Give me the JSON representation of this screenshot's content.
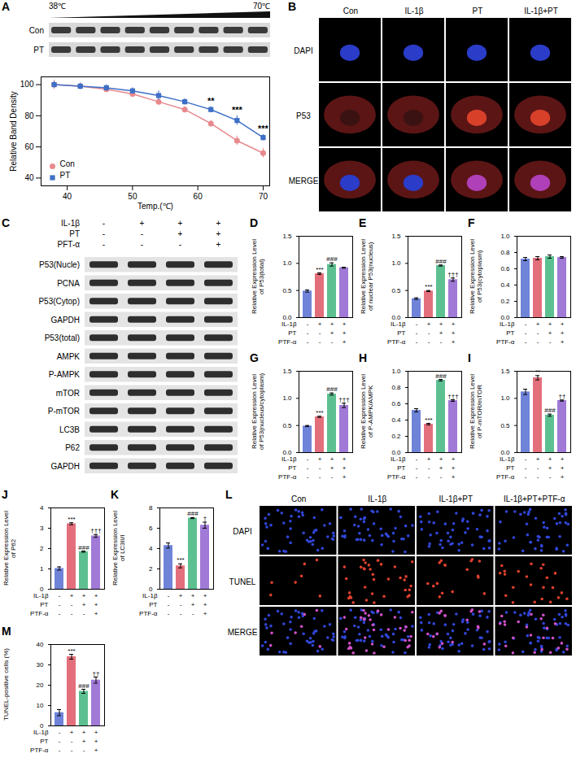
{
  "chart_data": [
    {
      "panel": "A",
      "type": "line",
      "blot": {
        "left_label": "38℃",
        "right_label": "70℃",
        "rows": [
          "Con",
          "PT"
        ]
      },
      "x": [
        38,
        42,
        46,
        50,
        54,
        58,
        62,
        66,
        70
      ],
      "xlim": [
        36,
        71
      ],
      "xticks": [
        40,
        50,
        60,
        70
      ],
      "ylim": [
        35,
        105
      ],
      "yticks": [
        40,
        60,
        80,
        100
      ],
      "x_label": "Temp.(℃)",
      "y_label": "Relative Band Density",
      "legend": "bottom-left",
      "series": [
        {
          "name": "Con",
          "color": "#E8898D",
          "marker": "circle",
          "values": [
            100,
            99,
            97,
            94,
            89,
            84,
            75,
            64,
            56
          ],
          "errors": [
            3,
            2,
            2,
            2,
            2,
            2,
            2,
            3,
            3
          ]
        },
        {
          "name": "PT",
          "color": "#3E6FC6",
          "marker": "square",
          "values": [
            100,
            99,
            98,
            96,
            93,
            89,
            84,
            77,
            66
          ],
          "errors": [
            2,
            2,
            2,
            2,
            3,
            2,
            2,
            3,
            2
          ],
          "significance": [
            null,
            null,
            null,
            null,
            null,
            null,
            "**",
            "***",
            "***"
          ]
        }
      ]
    },
    {
      "panel": "D",
      "type": "bar",
      "categories": [
        null,
        null,
        null,
        null
      ],
      "values": [
        0.49,
        0.81,
        0.98,
        0.92
      ],
      "errors": [
        0.02,
        0.015,
        0.03,
        0.01
      ],
      "colors": [
        "#6F83D8",
        "#E36F7C",
        "#5DC091",
        "#A07AD6"
      ],
      "ylim": [
        0,
        1.5
      ],
      "yticks": [
        {
          "value": 0,
          "label": "0.0"
        },
        0.5,
        {
          "value": 1,
          "label": "1.0"
        },
        1.5
      ],
      "y_label": "Relative Expression Level of P53(total)",
      "significance": [
        null,
        "***",
        "###",
        null
      ],
      "conditions": [
        {
          "name": "IL-1β",
          "values": [
            "-",
            "+",
            "+",
            "+"
          ]
        },
        {
          "name": "PT",
          "values": [
            "-",
            "-",
            "+",
            "+"
          ]
        },
        {
          "name": "PTF-α",
          "values": [
            "-",
            "-",
            "-",
            "+"
          ]
        }
      ]
    },
    {
      "panel": "E",
      "type": "bar",
      "categories": [
        null,
        null,
        null,
        null
      ],
      "values": [
        0.35,
        0.49,
        0.96,
        0.7
      ],
      "errors": [
        0.015,
        0.01,
        0.01,
        0.03
      ],
      "colors": [
        "#6F83D8",
        "#E36F7C",
        "#5DC091",
        "#A07AD6"
      ],
      "ylim": [
        0,
        1.5
      ],
      "yticks": [
        {
          "value": 0,
          "label": "0.0"
        },
        0.5,
        {
          "value": 1,
          "label": "1.0"
        },
        1.5
      ],
      "y_label": "Relative Expression Level of nuclear P53(nucleus)",
      "significance": [
        null,
        "***",
        "###",
        "†††"
      ],
      "conditions": [
        {
          "name": "IL-1β",
          "values": [
            "-",
            "+",
            "+",
            "+"
          ]
        },
        {
          "name": "PT",
          "values": [
            "-",
            "-",
            "+",
            "+"
          ]
        },
        {
          "name": "PTF-α",
          "values": [
            "-",
            "-",
            "-",
            "+"
          ]
        }
      ]
    },
    {
      "panel": "F",
      "type": "bar",
      "categories": [
        null,
        null,
        null,
        null
      ],
      "values": [
        0.72,
        0.73,
        0.75,
        0.74
      ],
      "errors": [
        0.02,
        0.02,
        0.02,
        0.01
      ],
      "colors": [
        "#6F83D8",
        "#E36F7C",
        "#5DC091",
        "#A07AD6"
      ],
      "ylim": [
        0,
        1
      ],
      "yticks": [
        {
          "value": 0,
          "label": "0.0"
        },
        0.2,
        0.4,
        0.6,
        0.8,
        {
          "value": 1,
          "label": "1.0"
        }
      ],
      "y_label": "Relative Expression Level of P53(cytoplasm)",
      "significance": [
        null,
        null,
        null,
        null
      ],
      "conditions": [
        {
          "name": "IL-1β",
          "values": [
            "-",
            "+",
            "+",
            "+"
          ]
        },
        {
          "name": "PT",
          "values": [
            "-",
            "-",
            "+",
            "+"
          ]
        },
        {
          "name": "PTF-α",
          "values": [
            "-",
            "-",
            "-",
            "+"
          ]
        }
      ]
    },
    {
      "panel": "G",
      "type": "bar",
      "categories": [
        null,
        null,
        null,
        null
      ],
      "values": [
        0.49,
        0.66,
        1.08,
        0.87
      ],
      "errors": [
        0.01,
        0.01,
        0.02,
        0.04
      ],
      "colors": [
        "#6F83D8",
        "#E36F7C",
        "#5DC091",
        "#A07AD6"
      ],
      "ylim": [
        0,
        1.5
      ],
      "yticks": [
        {
          "value": 0,
          "label": "0.0"
        },
        0.5,
        {
          "value": 1,
          "label": "1.0"
        },
        1.5
      ],
      "y_label": "Relative Expression Level of P53(nucleus/cytoplasm)",
      "significance": [
        null,
        "***",
        "###",
        "†††"
      ],
      "conditions": [
        {
          "name": "IL-1β",
          "values": [
            "-",
            "+",
            "+",
            "+"
          ]
        },
        {
          "name": "PT",
          "values": [
            "-",
            "-",
            "+",
            "+"
          ]
        },
        {
          "name": "PTF-α",
          "values": [
            "-",
            "-",
            "-",
            "+"
          ]
        }
      ]
    },
    {
      "panel": "H",
      "type": "bar",
      "categories": [
        null,
        null,
        null,
        null
      ],
      "values": [
        0.52,
        0.35,
        0.89,
        0.64
      ],
      "errors": [
        0.02,
        0.01,
        0.01,
        0.01
      ],
      "colors": [
        "#6F83D8",
        "#E36F7C",
        "#5DC091",
        "#A07AD6"
      ],
      "ylim": [
        0,
        1
      ],
      "yticks": [
        {
          "value": 0,
          "label": "0.0"
        },
        0.2,
        0.4,
        0.6,
        0.8,
        {
          "value": 1,
          "label": "1.0"
        }
      ],
      "y_label": "Relative Expression Level of P-AMPK/AMPK",
      "significance": [
        null,
        "***",
        "###",
        "†††"
      ],
      "conditions": [
        {
          "name": "IL-1β",
          "values": [
            "-",
            "+",
            "+",
            "+"
          ]
        },
        {
          "name": "PT",
          "values": [
            "-",
            "-",
            "+",
            "+"
          ]
        },
        {
          "name": "PTF-α",
          "values": [
            "-",
            "-",
            "-",
            "+"
          ]
        }
      ]
    },
    {
      "panel": "I",
      "type": "bar",
      "categories": [
        null,
        null,
        null,
        null
      ],
      "values": [
        1.12,
        1.38,
        0.69,
        0.96
      ],
      "errors": [
        0.05,
        0.04,
        0.02,
        0.01
      ],
      "colors": [
        "#6F83D8",
        "#E36F7C",
        "#5DC091",
        "#A07AD6"
      ],
      "ylim": [
        0,
        1.5
      ],
      "yticks": [
        {
          "value": 0,
          "label": "0.0"
        },
        0.5,
        {
          "value": 1,
          "label": "1.0"
        },
        1.5
      ],
      "y_label": "Relative Expression Level of P-mTOR/mTOR",
      "significance": [
        null,
        "**",
        "###",
        "††"
      ],
      "conditions": [
        {
          "name": "IL-1β",
          "values": [
            "-",
            "+",
            "+",
            "+"
          ]
        },
        {
          "name": "PT",
          "values": [
            "-",
            "-",
            "+",
            "+"
          ]
        },
        {
          "name": "PTF-α",
          "values": [
            "-",
            "-",
            "-",
            "+"
          ]
        }
      ]
    },
    {
      "panel": "J",
      "type": "bar",
      "categories": [
        null,
        null,
        null,
        null
      ],
      "values": [
        1.02,
        3.22,
        1.85,
        2.62
      ],
      "errors": [
        0.08,
        0.05,
        0.03,
        0.07
      ],
      "colors": [
        "#6F83D8",
        "#E36F7C",
        "#5DC091",
        "#A07AD6"
      ],
      "ylim": [
        0,
        4
      ],
      "yticks": [
        0,
        1,
        2,
        3,
        4
      ],
      "y_label": "Relative Expression Level of P62",
      "significance": [
        null,
        "***",
        "###",
        "†††"
      ],
      "conditions": [
        {
          "name": "IL-1β",
          "values": [
            "-",
            "+",
            "+",
            "+"
          ]
        },
        {
          "name": "PT",
          "values": [
            "-",
            "-",
            "+",
            "+"
          ]
        },
        {
          "name": "PTF-α",
          "values": [
            "-",
            "-",
            "-",
            "+"
          ]
        }
      ]
    },
    {
      "panel": "K",
      "type": "bar",
      "categories": [
        null,
        null,
        null,
        null
      ],
      "values": [
        4.3,
        2.3,
        7.0,
        6.3
      ],
      "errors": [
        0.25,
        0.2,
        0.05,
        0.3
      ],
      "colors": [
        "#6F83D8",
        "#E36F7C",
        "#5DC091",
        "#A07AD6"
      ],
      "ylim": [
        0,
        8
      ],
      "yticks": [
        0,
        2,
        4,
        6,
        8
      ],
      "y_label": "Relative Expression Level of LC3II/I",
      "significance": [
        null,
        "***",
        "###",
        "†"
      ],
      "conditions": [
        {
          "name": "IL-1β",
          "values": [
            "-",
            "+",
            "+",
            "+"
          ]
        },
        {
          "name": "PT",
          "values": [
            "-",
            "-",
            "+",
            "+"
          ]
        },
        {
          "name": "PTF-α",
          "values": [
            "-",
            "-",
            "-",
            "+"
          ]
        }
      ]
    },
    {
      "panel": "M",
      "type": "bar",
      "categories": [
        null,
        null,
        null,
        null
      ],
      "values": [
        6.5,
        34,
        17,
        22.5
      ],
      "errors": [
        1.5,
        1.2,
        1,
        1.5
      ],
      "colors": [
        "#6F83D8",
        "#E36F7C",
        "#5DC091",
        "#A07AD6"
      ],
      "ylim": [
        0,
        40
      ],
      "yticks": [
        0,
        10,
        20,
        30,
        40
      ],
      "y_label": "TUNEL-positive cells (%)",
      "significance": [
        null,
        "***",
        "###",
        "††"
      ],
      "conditions": [
        {
          "name": "IL-1β",
          "values": [
            "-",
            "+",
            "+",
            "+"
          ]
        },
        {
          "name": "PT",
          "values": [
            "-",
            "-",
            "+",
            "+"
          ]
        },
        {
          "name": "PTF-α",
          "values": [
            "-",
            "-",
            "-",
            "+"
          ]
        }
      ]
    }
  ],
  "blot": {
    "panel": "C",
    "conditions": [
      {
        "name": "IL-1β",
        "values": [
          "-",
          "+",
          "+",
          "+"
        ]
      },
      {
        "name": "PT",
        "values": [
          "-",
          "-",
          "+",
          "+"
        ]
      },
      {
        "name": "PFT-α",
        "values": [
          "-",
          "-",
          "-",
          "+"
        ]
      }
    ],
    "rows": [
      "P53(Nucle)",
      "PCNA",
      "P53(Cytop)",
      "GAPDH",
      "P53(total)",
      "AMPK",
      "P-AMPK",
      "mTOR",
      "P-mTOR",
      "LC3B",
      "P62",
      "GAPDH"
    ]
  },
  "images": [
    {
      "panel": "B",
      "columns": [
        "Con",
        "IL-1β",
        "PT",
        "IL-1β+PT"
      ],
      "rows": [
        "DAPI",
        "P53",
        "MERGE"
      ]
    },
    {
      "panel": "L",
      "columns": [
        "Con",
        "IL-1β",
        "IL-1β+PT",
        "IL-1β+PT+PTF-α"
      ],
      "rows": [
        "DAPI",
        "TUNEL",
        "MERGE"
      ]
    }
  ]
}
